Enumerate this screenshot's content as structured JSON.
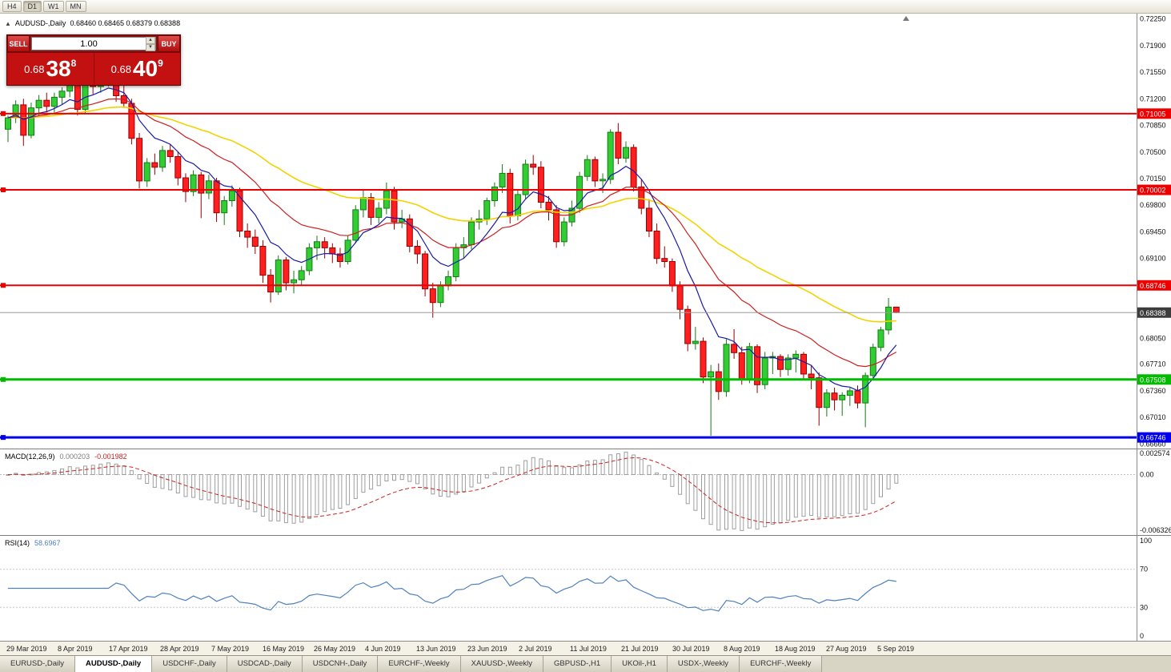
{
  "toolbar": {
    "timeframes": [
      "H4",
      "D1",
      "W1",
      "MN"
    ],
    "active": "D1"
  },
  "chart": {
    "title": "AUDUSD-,Daily",
    "ohlc": "0.68460 0.68465 0.68379 0.68388",
    "axis_labels": [
      "0.72250",
      "0.71900",
      "0.71550",
      "0.71200",
      "0.70850",
      "0.70500",
      "0.70150",
      "0.69800",
      "0.69450",
      "0.69100",
      "0.68750",
      "0.68400",
      "0.68050",
      "0.67710",
      "0.67360",
      "0.67010",
      "0.66660"
    ],
    "levels": [
      {
        "value": 0.71005,
        "label": "0.71005",
        "color": "#ee0000",
        "width": 2,
        "marker": true
      },
      {
        "value": 0.70002,
        "label": "0.70002",
        "color": "#ee0000",
        "width": 2,
        "marker": true
      },
      {
        "value": 0.68746,
        "label": "0.68746",
        "color": "#ee0000",
        "width": 2,
        "marker": true
      },
      {
        "value": 0.67508,
        "label": "0.67508",
        "color": "#00bb00",
        "width": 3,
        "marker": true
      },
      {
        "value": 0.66746,
        "label": "0.66746",
        "color": "#0000ee",
        "width": 3,
        "marker": true
      }
    ],
    "current_price": {
      "value": 0.68388,
      "label": "0.68388",
      "color": "#3c3c3c"
    }
  },
  "trade_panel": {
    "sell_label": "SELL",
    "buy_label": "BUY",
    "volume": "1.00",
    "sell_price": {
      "prefix": "0.68",
      "big": "38",
      "sup": "8"
    },
    "buy_price": {
      "prefix": "0.68",
      "big": "40",
      "sup": "9"
    }
  },
  "macd": {
    "label": "MACD(12,26,9)",
    "value_main": "0.000203",
    "value_signal": "-0.001982",
    "axis": [
      "0.002574",
      "0.00",
      "-0.006326"
    ],
    "colors": {
      "histogram": "#9e9e9e",
      "signal": "#cc2222"
    }
  },
  "rsi": {
    "label": "RSI(14)",
    "value": "58.6967",
    "axis": [
      "100",
      "70",
      "30",
      "0"
    ],
    "levels": [
      70,
      30
    ],
    "color": "#4f81bd"
  },
  "date_axis": [
    "29 Mar 2019",
    "8 Apr 2019",
    "17 Apr 2019",
    "28 Apr 2019",
    "7 May 2019",
    "16 May 2019",
    "26 May 2019",
    "4 Jun 2019",
    "13 Jun 2019",
    "23 Jun 2019",
    "2 Jul 2019",
    "11 Jul 2019",
    "21 Jul 2019",
    "30 Jul 2019",
    "8 Aug 2019",
    "18 Aug 2019",
    "27 Aug 2019",
    "5 Sep 2019"
  ],
  "tabs": [
    "EURUSD-,Daily",
    "AUDUSD-,Daily",
    "USDCHF-,Daily",
    "USDCAD-,Daily",
    "USDCNH-,Daily",
    "EURCHF-,Weekly",
    "XAUUSD-,Weekly",
    "GBPUSD-,H1",
    "UKOil-,H1",
    "USDX-,Weekly",
    "EURCHF-,Weekly"
  ],
  "active_tab_index": 1,
  "chart_data": {
    "type": "candlestick",
    "symbol": "AUDUSD-",
    "timeframe": "Daily",
    "price_min": 0.666,
    "price_max": 0.7232,
    "colors": {
      "up": "#32CD32",
      "up_border": "#157a15",
      "down": "#ff1f1f",
      "down_border": "#960000"
    },
    "ma": {
      "blue": {
        "period": 8,
        "color": "#1a1aa8"
      },
      "red": {
        "period": 20,
        "color": "#cc1f1f"
      },
      "yellow": {
        "period": 45,
        "color": "#f2d300"
      }
    },
    "candles": [
      [
        0.708,
        0.7098,
        0.7063,
        0.7095
      ],
      [
        0.7095,
        0.7118,
        0.7088,
        0.7112
      ],
      [
        0.7112,
        0.712,
        0.7058,
        0.7072
      ],
      [
        0.7072,
        0.7115,
        0.7068,
        0.7108
      ],
      [
        0.7108,
        0.7125,
        0.7098,
        0.7118
      ],
      [
        0.7118,
        0.7128,
        0.7102,
        0.711
      ],
      [
        0.711,
        0.7128,
        0.71,
        0.7122
      ],
      [
        0.7122,
        0.7135,
        0.7112,
        0.713
      ],
      [
        0.713,
        0.7148,
        0.7122,
        0.7142
      ],
      [
        0.7142,
        0.7146,
        0.7098,
        0.7106
      ],
      [
        0.7106,
        0.7148,
        0.71,
        0.7143
      ],
      [
        0.7143,
        0.7152,
        0.7126,
        0.7136
      ],
      [
        0.7136,
        0.715,
        0.7128,
        0.7145
      ],
      [
        0.7145,
        0.7158,
        0.7136,
        0.715
      ],
      [
        0.715,
        0.7156,
        0.7116,
        0.7124
      ],
      [
        0.7124,
        0.7138,
        0.7108,
        0.7114
      ],
      [
        0.7114,
        0.712,
        0.706,
        0.7068
      ],
      [
        0.7068,
        0.7075,
        0.7002,
        0.7012
      ],
      [
        0.7012,
        0.7042,
        0.7004,
        0.7036
      ],
      [
        0.7036,
        0.7048,
        0.702,
        0.703
      ],
      [
        0.703,
        0.7058,
        0.7024,
        0.7052
      ],
      [
        0.7052,
        0.706,
        0.7036,
        0.7044
      ],
      [
        0.7044,
        0.705,
        0.7006,
        0.7016
      ],
      [
        0.7016,
        0.7022,
        0.6984,
        0.6998
      ],
      [
        0.6998,
        0.7026,
        0.6992,
        0.702
      ],
      [
        0.702,
        0.7024,
        0.6963,
        0.6996
      ],
      [
        0.6996,
        0.702,
        0.6988,
        0.7012
      ],
      [
        0.7012,
        0.7016,
        0.6958,
        0.697
      ],
      [
        0.697,
        0.6992,
        0.6954,
        0.6986
      ],
      [
        0.6986,
        0.7006,
        0.6978,
        0.6999
      ],
      [
        0.6999,
        0.7003,
        0.6938,
        0.6946
      ],
      [
        0.6946,
        0.6956,
        0.6924,
        0.6938
      ],
      [
        0.6938,
        0.6948,
        0.6916,
        0.6926
      ],
      [
        0.6926,
        0.6934,
        0.6878,
        0.6888
      ],
      [
        0.6888,
        0.6896,
        0.6852,
        0.6866
      ],
      [
        0.6866,
        0.6914,
        0.6862,
        0.6908
      ],
      [
        0.6908,
        0.6912,
        0.6868,
        0.6878
      ],
      [
        0.6878,
        0.6894,
        0.6864,
        0.6882
      ],
      [
        0.6882,
        0.69,
        0.6874,
        0.6894
      ],
      [
        0.6894,
        0.693,
        0.6888,
        0.6924
      ],
      [
        0.6924,
        0.694,
        0.6908,
        0.6932
      ],
      [
        0.6932,
        0.6938,
        0.691,
        0.6924
      ],
      [
        0.6924,
        0.693,
        0.6904,
        0.6916
      ],
      [
        0.6916,
        0.6924,
        0.6898,
        0.6906
      ],
      [
        0.6906,
        0.694,
        0.6902,
        0.6934
      ],
      [
        0.6934,
        0.698,
        0.693,
        0.6974
      ],
      [
        0.6974,
        0.7,
        0.6964,
        0.699
      ],
      [
        0.699,
        0.6996,
        0.6954,
        0.6964
      ],
      [
        0.6964,
        0.6984,
        0.6956,
        0.6976
      ],
      [
        0.6976,
        0.701,
        0.6968,
        0.6999
      ],
      [
        0.6999,
        0.7004,
        0.6948,
        0.6958
      ],
      [
        0.6958,
        0.6974,
        0.695,
        0.6962
      ],
      [
        0.6962,
        0.6968,
        0.6918,
        0.6926
      ],
      [
        0.6926,
        0.6934,
        0.6903,
        0.6916
      ],
      [
        0.6916,
        0.692,
        0.686,
        0.687
      ],
      [
        0.687,
        0.6878,
        0.6832,
        0.6852
      ],
      [
        0.6852,
        0.688,
        0.6846,
        0.6874
      ],
      [
        0.6874,
        0.6894,
        0.6868,
        0.6886
      ],
      [
        0.6886,
        0.693,
        0.688,
        0.6924
      ],
      [
        0.6924,
        0.6938,
        0.691,
        0.6928
      ],
      [
        0.6928,
        0.6964,
        0.6922,
        0.6958
      ],
      [
        0.6958,
        0.6974,
        0.6948,
        0.6962
      ],
      [
        0.6962,
        0.699,
        0.6954,
        0.6986
      ],
      [
        0.6986,
        0.701,
        0.6978,
        0.7004
      ],
      [
        0.7004,
        0.7034,
        0.6996,
        0.7022
      ],
      [
        0.7022,
        0.7028,
        0.6956,
        0.6966
      ],
      [
        0.6966,
        0.7,
        0.696,
        0.6994
      ],
      [
        0.6994,
        0.704,
        0.6988,
        0.7034
      ],
      [
        0.7034,
        0.7046,
        0.702,
        0.703
      ],
      [
        0.703,
        0.7038,
        0.6976,
        0.6984
      ],
      [
        0.6984,
        0.6992,
        0.696,
        0.6974
      ],
      [
        0.6974,
        0.698,
        0.6924,
        0.6932
      ],
      [
        0.6932,
        0.6964,
        0.6926,
        0.6958
      ],
      [
        0.6958,
        0.6986,
        0.6952,
        0.6976
      ],
      [
        0.6976,
        0.7024,
        0.697,
        0.7018
      ],
      [
        0.7018,
        0.7046,
        0.7012,
        0.704
      ],
      [
        0.704,
        0.7044,
        0.7004,
        0.7012
      ],
      [
        0.7012,
        0.7022,
        0.6996,
        0.7014
      ],
      [
        0.7014,
        0.708,
        0.7008,
        0.7076
      ],
      [
        0.7076,
        0.7088,
        0.7034,
        0.7042
      ],
      [
        0.7042,
        0.7064,
        0.7036,
        0.7056
      ],
      [
        0.7056,
        0.706,
        0.6998,
        0.7004
      ],
      [
        0.7004,
        0.7014,
        0.6968,
        0.6976
      ],
      [
        0.6976,
        0.6988,
        0.6938,
        0.6946
      ],
      [
        0.6946,
        0.6956,
        0.6903,
        0.691
      ],
      [
        0.691,
        0.6926,
        0.6898,
        0.6906
      ],
      [
        0.6906,
        0.691,
        0.6866,
        0.6874
      ],
      [
        0.6874,
        0.688,
        0.683,
        0.6843
      ],
      [
        0.6843,
        0.6848,
        0.6788,
        0.6798
      ],
      [
        0.6798,
        0.682,
        0.679,
        0.6801
      ],
      [
        0.6801,
        0.6806,
        0.6746,
        0.6754
      ],
      [
        0.6754,
        0.677,
        0.6677,
        0.6761
      ],
      [
        0.6761,
        0.6772,
        0.6724,
        0.6735
      ],
      [
        0.6735,
        0.6804,
        0.6728,
        0.6797
      ],
      [
        0.6797,
        0.6817,
        0.6778,
        0.6786
      ],
      [
        0.6786,
        0.6794,
        0.6744,
        0.6751
      ],
      [
        0.6751,
        0.6799,
        0.6746,
        0.6794
      ],
      [
        0.6794,
        0.6797,
        0.6733,
        0.6744
      ],
      [
        0.6744,
        0.6787,
        0.6738,
        0.6779
      ],
      [
        0.6779,
        0.6787,
        0.6758,
        0.6781
      ],
      [
        0.6781,
        0.6784,
        0.6754,
        0.6764
      ],
      [
        0.6764,
        0.6784,
        0.6756,
        0.6779
      ],
      [
        0.6779,
        0.6789,
        0.676,
        0.6784
      ],
      [
        0.6784,
        0.6787,
        0.675,
        0.6758
      ],
      [
        0.6758,
        0.677,
        0.6738,
        0.6753
      ],
      [
        0.6753,
        0.676,
        0.669,
        0.6714
      ],
      [
        0.6714,
        0.6738,
        0.6702,
        0.6733
      ],
      [
        0.6733,
        0.674,
        0.671,
        0.6724
      ],
      [
        0.6724,
        0.6734,
        0.6703,
        0.673
      ],
      [
        0.673,
        0.674,
        0.6716,
        0.6736
      ],
      [
        0.6736,
        0.6743,
        0.6713,
        0.672
      ],
      [
        0.672,
        0.676,
        0.6688,
        0.6756
      ],
      [
        0.6756,
        0.6798,
        0.675,
        0.6793
      ],
      [
        0.6793,
        0.682,
        0.6788,
        0.6816
      ],
      [
        0.6816,
        0.6858,
        0.681,
        0.6846
      ],
      [
        0.6846,
        0.68465,
        0.68379,
        0.68388
      ]
    ]
  }
}
